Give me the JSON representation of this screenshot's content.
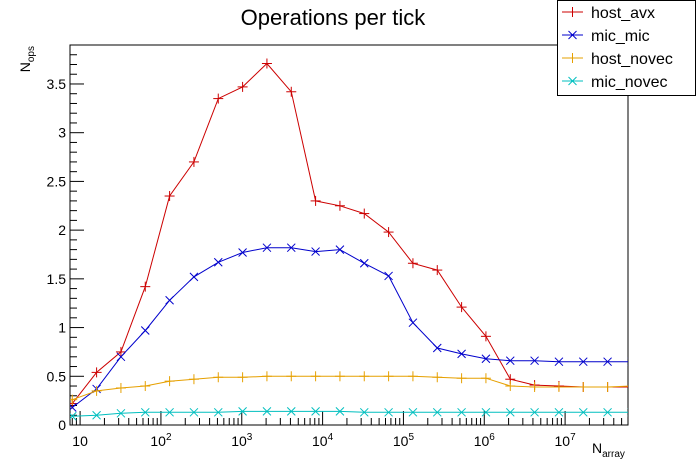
{
  "chart_data": {
    "type": "line",
    "title": "Operations per tick",
    "xlabel": {
      "main": "N",
      "sub": "array"
    },
    "ylabel": {
      "main": "N",
      "sub": "ops"
    },
    "xscale": "log",
    "xlim": [
      7.5,
      60000000
    ],
    "ylim": [
      0,
      3.9
    ],
    "xticks": [
      {
        "value": 10,
        "base": "10",
        "exp": ""
      },
      {
        "value": 100,
        "base": "10",
        "exp": "2"
      },
      {
        "value": 1000,
        "base": "10",
        "exp": "3"
      },
      {
        "value": 10000,
        "base": "10",
        "exp": "4"
      },
      {
        "value": 100000,
        "base": "10",
        "exp": "5"
      },
      {
        "value": 1000000,
        "base": "10",
        "exp": "6"
      },
      {
        "value": 10000000,
        "base": "10",
        "exp": "7"
      }
    ],
    "yticks": [
      {
        "value": 0,
        "label": "0"
      },
      {
        "value": 0.5,
        "label": "0.5"
      },
      {
        "value": 1,
        "label": "1"
      },
      {
        "value": 1.5,
        "label": "1.5"
      },
      {
        "value": 2,
        "label": "2"
      },
      {
        "value": 2.5,
        "label": "2.5"
      },
      {
        "value": 3,
        "label": "3"
      },
      {
        "value": 3.5,
        "label": "3.5"
      }
    ],
    "legend_position": "top-right",
    "grid": false,
    "x": [
      8,
      16,
      32,
      64,
      128,
      256,
      512,
      1024,
      2048,
      4096,
      8192,
      16384,
      32768,
      65536,
      131072,
      262144,
      524288,
      1048576,
      2097152,
      4194304,
      8388608,
      16777216,
      33554432,
      67108864
    ],
    "series": [
      {
        "name": "host_avx",
        "color": "#cc0000",
        "marker": "plus",
        "values": [
          0.22,
          0.54,
          0.75,
          1.42,
          2.35,
          2.7,
          3.35,
          3.47,
          3.71,
          3.42,
          2.3,
          2.25,
          2.17,
          1.98,
          1.66,
          1.59,
          1.21,
          0.91,
          0.47,
          0.41,
          0.4,
          0.39,
          0.39,
          0.39
        ]
      },
      {
        "name": "mic_mic",
        "color": "#0000cc",
        "marker": "cross",
        "values": [
          0.18,
          0.37,
          0.7,
          0.97,
          1.28,
          1.52,
          1.67,
          1.77,
          1.82,
          1.82,
          1.78,
          1.8,
          1.66,
          1.53,
          1.05,
          0.79,
          0.73,
          0.68,
          0.66,
          0.66,
          0.65,
          0.65,
          0.65,
          0.65
        ]
      },
      {
        "name": "host_novec",
        "color": "#e6a000",
        "marker": "plus",
        "values": [
          0.26,
          0.35,
          0.38,
          0.4,
          0.45,
          0.47,
          0.49,
          0.49,
          0.5,
          0.5,
          0.5,
          0.5,
          0.5,
          0.5,
          0.5,
          0.49,
          0.48,
          0.48,
          0.4,
          0.39,
          0.39,
          0.39,
          0.39,
          0.4
        ]
      },
      {
        "name": "mic_novec",
        "color": "#00bfbf",
        "marker": "cross",
        "values": [
          0.09,
          0.1,
          0.12,
          0.13,
          0.13,
          0.13,
          0.13,
          0.14,
          0.14,
          0.14,
          0.14,
          0.14,
          0.13,
          0.13,
          0.13,
          0.13,
          0.13,
          0.13,
          0.13,
          0.13,
          0.13,
          0.13,
          0.13,
          0.13
        ]
      }
    ]
  }
}
